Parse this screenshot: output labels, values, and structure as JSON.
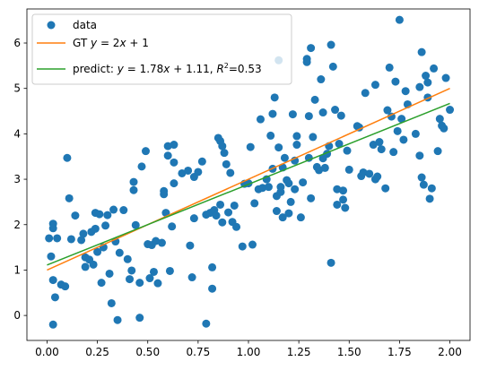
{
  "chart_data": {
    "type": "scatter",
    "xlim": [
      -0.1,
      2.1
    ],
    "ylim": [
      -0.55,
      6.75
    ],
    "x_ticks": [
      0.0,
      0.25,
      0.5,
      0.75,
      1.0,
      1.25,
      1.5,
      1.75,
      2.0
    ],
    "x_tick_labels": [
      "0.00",
      "0.25",
      "0.50",
      "0.75",
      "1.00",
      "1.25",
      "1.50",
      "1.75",
      "2.00"
    ],
    "y_ticks": [
      0,
      1,
      2,
      3,
      4,
      5,
      6
    ],
    "y_tick_labels": [
      "0",
      "1",
      "2",
      "3",
      "4",
      "5",
      "6"
    ],
    "grid": false,
    "legend_position": "top-left",
    "series": [
      {
        "name": "data",
        "kind": "scatter",
        "color": "#1f77b4",
        "points": [
          [
            0.01,
            1.7
          ],
          [
            0.02,
            1.3
          ],
          [
            0.03,
            2.02
          ],
          [
            0.03,
            1.92
          ],
          [
            0.03,
            0.78
          ],
          [
            0.03,
            -0.2
          ],
          [
            0.04,
            0.4
          ],
          [
            0.05,
            1.7
          ],
          [
            0.07,
            0.68
          ],
          [
            0.09,
            0.64
          ],
          [
            0.1,
            3.47
          ],
          [
            0.11,
            2.58
          ],
          [
            0.12,
            1.68
          ],
          [
            0.14,
            2.2
          ],
          [
            0.17,
            1.66
          ],
          [
            0.18,
            1.8
          ],
          [
            0.19,
            1.28
          ],
          [
            0.19,
            1.07
          ],
          [
            0.21,
            1.23
          ],
          [
            0.22,
            1.84
          ],
          [
            0.23,
            1.12
          ],
          [
            0.24,
            1.91
          ],
          [
            0.24,
            2.26
          ],
          [
            0.25,
            1.4
          ],
          [
            0.26,
            2.23
          ],
          [
            0.27,
            0.72
          ],
          [
            0.28,
            1.5
          ],
          [
            0.29,
            1.98
          ],
          [
            0.3,
            2.21
          ],
          [
            0.31,
            0.92
          ],
          [
            0.32,
            0.27
          ],
          [
            0.33,
            2.33
          ],
          [
            0.34,
            1.63
          ],
          [
            0.35,
            -0.1
          ],
          [
            0.36,
            1.38
          ],
          [
            0.38,
            2.32
          ],
          [
            0.4,
            1.24
          ],
          [
            0.41,
            0.8
          ],
          [
            0.42,
            0.99
          ],
          [
            0.43,
            2.94
          ],
          [
            0.43,
            2.76
          ],
          [
            0.44,
            1.99
          ],
          [
            0.46,
            0.72
          ],
          [
            0.46,
            -0.05
          ],
          [
            0.47,
            3.28
          ],
          [
            0.49,
            3.62
          ],
          [
            0.5,
            1.57
          ],
          [
            0.51,
            0.82
          ],
          [
            0.52,
            1.55
          ],
          [
            0.53,
            0.96
          ],
          [
            0.54,
            1.64
          ],
          [
            0.55,
            0.71
          ],
          [
            0.57,
            1.6
          ],
          [
            0.58,
            2.74
          ],
          [
            0.58,
            2.67
          ],
          [
            0.59,
            2.26
          ],
          [
            0.6,
            3.73
          ],
          [
            0.6,
            3.52
          ],
          [
            0.61,
            0.98
          ],
          [
            0.62,
            1.96
          ],
          [
            0.63,
            3.76
          ],
          [
            0.63,
            3.37
          ],
          [
            0.63,
            2.91
          ],
          [
            0.67,
            3.13
          ],
          [
            0.7,
            3.19
          ],
          [
            0.71,
            1.54
          ],
          [
            0.72,
            0.84
          ],
          [
            0.73,
            3.05
          ],
          [
            0.73,
            2.14
          ],
          [
            0.75,
            3.16
          ],
          [
            0.77,
            3.39
          ],
          [
            0.79,
            -0.18
          ],
          [
            0.79,
            2.22
          ],
          [
            0.81,
            2.26
          ],
          [
            0.82,
            0.59
          ],
          [
            0.82,
            1.06
          ],
          [
            0.83,
            2.32
          ],
          [
            0.84,
            2.2
          ],
          [
            0.85,
            3.91
          ],
          [
            0.86,
            3.84
          ],
          [
            0.86,
            2.44
          ],
          [
            0.87,
            3.73
          ],
          [
            0.87,
            2.05
          ],
          [
            0.88,
            3.58
          ],
          [
            0.89,
            3.33
          ],
          [
            0.9,
            2.27
          ],
          [
            0.91,
            3.14
          ],
          [
            0.92,
            2.06
          ],
          [
            0.93,
            2.42
          ],
          [
            0.94,
            1.95
          ],
          [
            0.97,
            1.52
          ],
          [
            0.98,
            2.9
          ],
          [
            1.0,
            2.91
          ],
          [
            1.01,
            3.71
          ],
          [
            1.02,
            1.56
          ],
          [
            1.03,
            2.47
          ],
          [
            1.05,
            2.78
          ],
          [
            1.06,
            4.32
          ],
          [
            1.07,
            2.81
          ],
          [
            1.09,
            3.0
          ],
          [
            1.1,
            2.83
          ],
          [
            1.11,
            3.96
          ],
          [
            1.12,
            4.44
          ],
          [
            1.12,
            3.23
          ],
          [
            1.13,
            4.8
          ],
          [
            1.14,
            2.63
          ],
          [
            1.14,
            2.3
          ],
          [
            1.15,
            3.7
          ],
          [
            1.15,
            5.62
          ],
          [
            1.16,
            2.83
          ],
          [
            1.16,
            2.72
          ],
          [
            1.17,
            2.16
          ],
          [
            1.17,
            3.26
          ],
          [
            1.18,
            3.47
          ],
          [
            1.19,
            2.98
          ],
          [
            1.2,
            2.25
          ],
          [
            1.2,
            2.91
          ],
          [
            1.21,
            2.5
          ],
          [
            1.22,
            4.43
          ],
          [
            1.23,
            2.78
          ],
          [
            1.23,
            3.41
          ],
          [
            1.24,
            3.76
          ],
          [
            1.24,
            3.95
          ],
          [
            1.26,
            2.16
          ],
          [
            1.27,
            2.93
          ],
          [
            1.29,
            5.58
          ],
          [
            1.29,
            5.65
          ],
          [
            1.3,
            3.47
          ],
          [
            1.3,
            4.39
          ],
          [
            1.31,
            2.58
          ],
          [
            1.31,
            5.89
          ],
          [
            1.32,
            3.93
          ],
          [
            1.33,
            4.75
          ],
          [
            1.34,
            3.27
          ],
          [
            1.35,
            3.2
          ],
          [
            1.36,
            5.2
          ],
          [
            1.37,
            3.46
          ],
          [
            1.37,
            4.47
          ],
          [
            1.38,
            3.25
          ],
          [
            1.39,
            3.56
          ],
          [
            1.4,
            3.73
          ],
          [
            1.41,
            5.96
          ],
          [
            1.41,
            1.16
          ],
          [
            1.42,
            5.48
          ],
          [
            1.43,
            4.53
          ],
          [
            1.44,
            2.78
          ],
          [
            1.44,
            2.44
          ],
          [
            1.45,
            3.78
          ],
          [
            1.46,
            4.4
          ],
          [
            1.47,
            2.75
          ],
          [
            1.47,
            2.55
          ],
          [
            1.48,
            2.37
          ],
          [
            1.49,
            3.63
          ],
          [
            1.5,
            3.21
          ],
          [
            1.54,
            4.17
          ],
          [
            1.55,
            4.14
          ],
          [
            1.56,
            3.07
          ],
          [
            1.57,
            3.15
          ],
          [
            1.58,
            4.9
          ],
          [
            1.6,
            3.12
          ],
          [
            1.62,
            3.76
          ],
          [
            1.63,
            5.08
          ],
          [
            1.63,
            3.0
          ],
          [
            1.64,
            3.06
          ],
          [
            1.65,
            3.82
          ],
          [
            1.66,
            3.66
          ],
          [
            1.68,
            2.8
          ],
          [
            1.69,
            4.52
          ],
          [
            1.7,
            5.46
          ],
          [
            1.71,
            4.38
          ],
          [
            1.72,
            3.6
          ],
          [
            1.73,
            5.15
          ],
          [
            1.74,
            4.06
          ],
          [
            1.75,
            6.51
          ],
          [
            1.76,
            4.33
          ],
          [
            1.77,
            3.87
          ],
          [
            1.78,
            4.94
          ],
          [
            1.79,
            4.65
          ],
          [
            1.83,
            4.0
          ],
          [
            1.85,
            3.52
          ],
          [
            1.85,
            5.03
          ],
          [
            1.86,
            3.04
          ],
          [
            1.86,
            5.8
          ],
          [
            1.87,
            2.88
          ],
          [
            1.88,
            5.28
          ],
          [
            1.89,
            5.13
          ],
          [
            1.89,
            4.8
          ],
          [
            1.9,
            2.57
          ],
          [
            1.91,
            2.8
          ],
          [
            1.92,
            5.44
          ],
          [
            1.94,
            3.62
          ],
          [
            1.95,
            4.33
          ],
          [
            1.96,
            4.18
          ],
          [
            1.97,
            4.12
          ],
          [
            1.98,
            5.23
          ],
          [
            2.0,
            4.53
          ]
        ]
      },
      {
        "name": "GT $y = 2x + 1$",
        "kind": "line",
        "color": "#ff7f0e",
        "slope": 2,
        "intercept": 1,
        "x_range": [
          0,
          2
        ]
      },
      {
        "name": "predict: $y = 1.78x + 1.11$, $R^2$=0.53",
        "kind": "line",
        "color": "#2ca02c",
        "slope": 1.78,
        "intercept": 1.11,
        "x_range": [
          0,
          2
        ]
      }
    ]
  }
}
